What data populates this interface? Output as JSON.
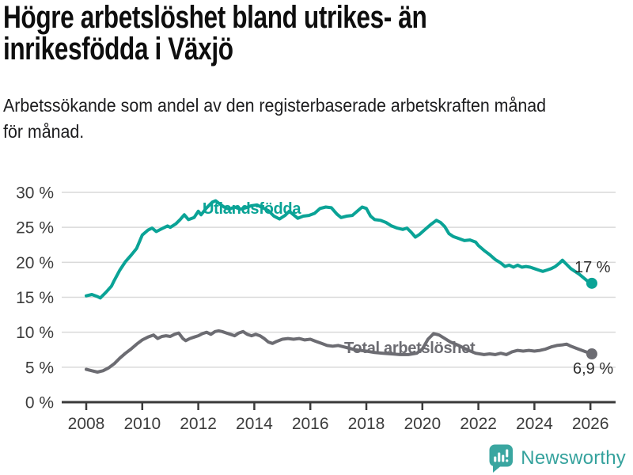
{
  "header": {
    "title_lines": [
      "Högre arbetslöshet bland utrikes- än",
      "inrikesfödda i Växjö"
    ],
    "subtitle_lines": [
      "Arbetssökande som andel av den registerbaserade arbetskraften månad",
      "för månad."
    ]
  },
  "chart_data": {
    "type": "line",
    "title": "Högre arbetslöshet bland utrikes- än inrikesfödda i Växjö",
    "subtitle": "Arbetssökande som andel av den registerbaserade arbetskraften månad för månad.",
    "xlabel": "",
    "ylabel": "",
    "ylim": [
      0,
      30
    ],
    "xlim": [
      2007.1,
      2026.9
    ],
    "grid": "horizontal",
    "legend_position": "inline-labels",
    "y_ticks": [
      {
        "value": 0,
        "label": "0 %"
      },
      {
        "value": 5,
        "label": "5 %"
      },
      {
        "value": 10,
        "label": "10 %"
      },
      {
        "value": 15,
        "label": "15 %"
      },
      {
        "value": 20,
        "label": "20 %"
      },
      {
        "value": 25,
        "label": "25 %"
      },
      {
        "value": 30,
        "label": "30 %"
      }
    ],
    "x_ticks": [
      {
        "value": 2008,
        "label": "2008"
      },
      {
        "value": 2010,
        "label": "2010"
      },
      {
        "value": 2012,
        "label": "2012"
      },
      {
        "value": 2014,
        "label": "2014"
      },
      {
        "value": 2016,
        "label": "2016"
      },
      {
        "value": 2018,
        "label": "2018"
      },
      {
        "value": 2020,
        "label": "2020"
      },
      {
        "value": 2022,
        "label": "2022"
      },
      {
        "value": 2024,
        "label": "2024"
      },
      {
        "value": 2026,
        "label": "2026"
      }
    ],
    "series": [
      {
        "name": "Utlandsfödda",
        "color": "#0aa396",
        "end_label": "17 %",
        "end_value": 17.0,
        "points": [
          [
            2008.0,
            15.2
          ],
          [
            2008.2,
            15.4
          ],
          [
            2008.4,
            15.1
          ],
          [
            2008.5,
            14.9
          ],
          [
            2008.7,
            15.7
          ],
          [
            2008.9,
            16.6
          ],
          [
            2009.0,
            17.4
          ],
          [
            2009.2,
            18.9
          ],
          [
            2009.4,
            20.1
          ],
          [
            2009.6,
            21.0
          ],
          [
            2009.8,
            22.0
          ],
          [
            2010.0,
            23.9
          ],
          [
            2010.2,
            24.6
          ],
          [
            2010.35,
            24.9
          ],
          [
            2010.5,
            24.4
          ],
          [
            2010.7,
            24.8
          ],
          [
            2010.9,
            25.2
          ],
          [
            2011.0,
            25.0
          ],
          [
            2011.2,
            25.5
          ],
          [
            2011.35,
            26.1
          ],
          [
            2011.5,
            26.8
          ],
          [
            2011.65,
            26.1
          ],
          [
            2011.85,
            26.4
          ],
          [
            2012.0,
            27.3
          ],
          [
            2012.1,
            26.8
          ],
          [
            2012.3,
            27.8
          ],
          [
            2012.5,
            28.6
          ],
          [
            2012.62,
            28.8
          ],
          [
            2012.78,
            28.3
          ],
          [
            2012.92,
            27.9
          ],
          [
            2013.1,
            27.6
          ],
          [
            2013.3,
            27.9
          ],
          [
            2013.5,
            27.6
          ],
          [
            2013.7,
            27.8
          ],
          [
            2013.9,
            28.1
          ],
          [
            2014.1,
            28.2
          ],
          [
            2014.3,
            27.8
          ],
          [
            2014.5,
            27.4
          ],
          [
            2014.7,
            26.6
          ],
          [
            2014.9,
            26.2
          ],
          [
            2015.1,
            26.7
          ],
          [
            2015.25,
            27.3
          ],
          [
            2015.4,
            26.8
          ],
          [
            2015.55,
            26.3
          ],
          [
            2015.75,
            26.6
          ],
          [
            2015.95,
            26.7
          ],
          [
            2016.15,
            27.0
          ],
          [
            2016.35,
            27.7
          ],
          [
            2016.55,
            27.9
          ],
          [
            2016.75,
            27.8
          ],
          [
            2016.95,
            26.9
          ],
          [
            2017.1,
            26.4
          ],
          [
            2017.3,
            26.6
          ],
          [
            2017.5,
            26.7
          ],
          [
            2017.7,
            27.4
          ],
          [
            2017.85,
            27.9
          ],
          [
            2018.0,
            27.7
          ],
          [
            2018.15,
            26.6
          ],
          [
            2018.3,
            26.1
          ],
          [
            2018.5,
            26.0
          ],
          [
            2018.7,
            25.7
          ],
          [
            2018.9,
            25.2
          ],
          [
            2019.1,
            24.9
          ],
          [
            2019.3,
            24.7
          ],
          [
            2019.45,
            24.9
          ],
          [
            2019.6,
            24.3
          ],
          [
            2019.75,
            23.6
          ],
          [
            2019.9,
            24.0
          ],
          [
            2020.1,
            24.7
          ],
          [
            2020.3,
            25.4
          ],
          [
            2020.5,
            26.0
          ],
          [
            2020.65,
            25.7
          ],
          [
            2020.8,
            25.1
          ],
          [
            2020.95,
            24.1
          ],
          [
            2021.1,
            23.7
          ],
          [
            2021.3,
            23.4
          ],
          [
            2021.5,
            23.1
          ],
          [
            2021.7,
            23.2
          ],
          [
            2021.9,
            22.9
          ],
          [
            2022.0,
            22.4
          ],
          [
            2022.2,
            21.7
          ],
          [
            2022.4,
            21.1
          ],
          [
            2022.6,
            20.4
          ],
          [
            2022.8,
            19.9
          ],
          [
            2022.95,
            19.4
          ],
          [
            2023.1,
            19.6
          ],
          [
            2023.25,
            19.3
          ],
          [
            2023.4,
            19.6
          ],
          [
            2023.55,
            19.3
          ],
          [
            2023.7,
            19.4
          ],
          [
            2023.85,
            19.3
          ],
          [
            2024.0,
            19.1
          ],
          [
            2024.15,
            18.9
          ],
          [
            2024.3,
            18.7
          ],
          [
            2024.45,
            18.9
          ],
          [
            2024.6,
            19.1
          ],
          [
            2024.75,
            19.4
          ],
          [
            2024.9,
            19.9
          ],
          [
            2025.0,
            20.3
          ],
          [
            2025.15,
            19.7
          ],
          [
            2025.3,
            19.1
          ],
          [
            2025.45,
            18.7
          ],
          [
            2025.6,
            18.3
          ],
          [
            2025.75,
            17.8
          ],
          [
            2025.9,
            17.3
          ],
          [
            2026.05,
            17.0
          ]
        ]
      },
      {
        "name": "Total arbetslöshet",
        "color": "#6c6c72",
        "end_label": "6,9 %",
        "end_value": 6.9,
        "points": [
          [
            2008.0,
            4.7
          ],
          [
            2008.2,
            4.5
          ],
          [
            2008.4,
            4.3
          ],
          [
            2008.6,
            4.5
          ],
          [
            2008.8,
            4.9
          ],
          [
            2009.0,
            5.5
          ],
          [
            2009.2,
            6.3
          ],
          [
            2009.4,
            7.0
          ],
          [
            2009.6,
            7.6
          ],
          [
            2009.8,
            8.3
          ],
          [
            2010.0,
            8.9
          ],
          [
            2010.2,
            9.3
          ],
          [
            2010.4,
            9.6
          ],
          [
            2010.55,
            9.1
          ],
          [
            2010.7,
            9.4
          ],
          [
            2010.85,
            9.5
          ],
          [
            2011.0,
            9.4
          ],
          [
            2011.15,
            9.7
          ],
          [
            2011.3,
            9.9
          ],
          [
            2011.45,
            9.1
          ],
          [
            2011.55,
            8.8
          ],
          [
            2011.7,
            9.1
          ],
          [
            2011.85,
            9.3
          ],
          [
            2012.0,
            9.5
          ],
          [
            2012.15,
            9.8
          ],
          [
            2012.3,
            10.0
          ],
          [
            2012.45,
            9.7
          ],
          [
            2012.6,
            10.1
          ],
          [
            2012.72,
            10.2
          ],
          [
            2012.85,
            10.1
          ],
          [
            2013.0,
            9.9
          ],
          [
            2013.15,
            9.7
          ],
          [
            2013.3,
            9.5
          ],
          [
            2013.45,
            9.9
          ],
          [
            2013.6,
            10.1
          ],
          [
            2013.75,
            9.7
          ],
          [
            2013.9,
            9.5
          ],
          [
            2014.05,
            9.7
          ],
          [
            2014.2,
            9.5
          ],
          [
            2014.35,
            9.1
          ],
          [
            2014.5,
            8.6
          ],
          [
            2014.65,
            8.4
          ],
          [
            2014.8,
            8.7
          ],
          [
            2015.0,
            9.0
          ],
          [
            2015.2,
            9.1
          ],
          [
            2015.4,
            9.0
          ],
          [
            2015.6,
            9.1
          ],
          [
            2015.8,
            8.9
          ],
          [
            2016.0,
            9.0
          ],
          [
            2016.2,
            8.7
          ],
          [
            2016.4,
            8.4
          ],
          [
            2016.6,
            8.1
          ],
          [
            2016.8,
            8.0
          ],
          [
            2017.0,
            8.1
          ],
          [
            2017.2,
            7.9
          ],
          [
            2017.4,
            7.7
          ],
          [
            2017.6,
            7.5
          ],
          [
            2017.8,
            7.4
          ],
          [
            2018.0,
            7.3
          ],
          [
            2018.3,
            7.1
          ],
          [
            2018.6,
            7.0
          ],
          [
            2018.9,
            6.9
          ],
          [
            2019.2,
            6.8
          ],
          [
            2019.5,
            6.8
          ],
          [
            2019.8,
            7.0
          ],
          [
            2020.0,
            7.6
          ],
          [
            2020.2,
            9.0
          ],
          [
            2020.4,
            9.8
          ],
          [
            2020.6,
            9.6
          ],
          [
            2020.8,
            9.1
          ],
          [
            2021.0,
            8.6
          ],
          [
            2021.3,
            8.1
          ],
          [
            2021.6,
            7.5
          ],
          [
            2021.9,
            7.0
          ],
          [
            2022.2,
            6.8
          ],
          [
            2022.4,
            6.9
          ],
          [
            2022.6,
            6.8
          ],
          [
            2022.8,
            7.0
          ],
          [
            2023.0,
            6.8
          ],
          [
            2023.2,
            7.2
          ],
          [
            2023.4,
            7.4
          ],
          [
            2023.6,
            7.3
          ],
          [
            2023.8,
            7.4
          ],
          [
            2024.0,
            7.3
          ],
          [
            2024.2,
            7.4
          ],
          [
            2024.4,
            7.6
          ],
          [
            2024.6,
            7.9
          ],
          [
            2024.8,
            8.1
          ],
          [
            2025.0,
            8.2
          ],
          [
            2025.15,
            8.3
          ],
          [
            2025.3,
            8.0
          ],
          [
            2025.5,
            7.7
          ],
          [
            2025.7,
            7.4
          ],
          [
            2025.9,
            7.1
          ],
          [
            2026.05,
            6.9
          ]
        ]
      }
    ],
    "colors": {
      "gridline": "#d9d9d9",
      "axis": "#3a3a3a",
      "tick_label": "#3c3c3c",
      "annotation": "#2f2f2f"
    }
  },
  "footer": {
    "brand": "Newsworthy",
    "brand_color": "#35a29d",
    "logo_icon": "bar-chart-speech-bubble-icon"
  }
}
